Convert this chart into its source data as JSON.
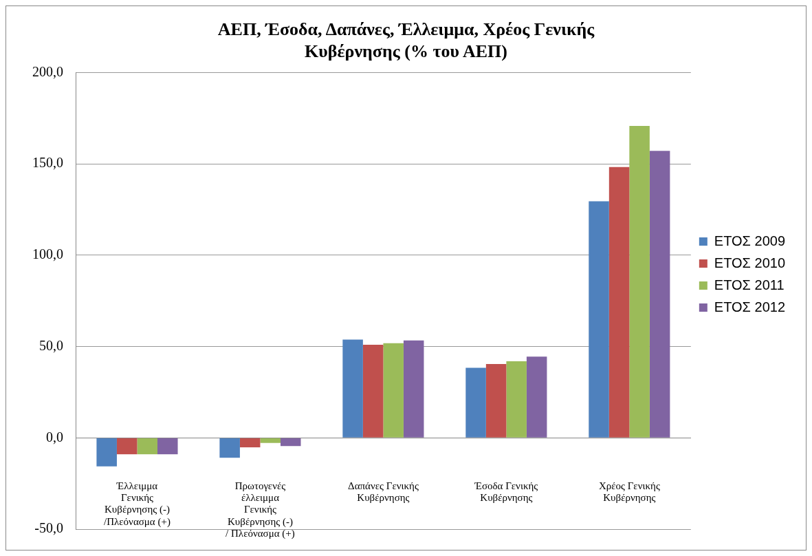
{
  "chart_data": {
    "type": "bar",
    "title": "ΑΕΠ, Έσοδα, Δαπάνες, Έλλειμμα, Χρέος Γενικής Κυβέρνησης (% του ΑΕΠ)",
    "categories": [
      "Έλλειμμα Γενικής Κυβέρνησης (-) /Πλεόνασμα (+)",
      "Πρωτογενές έλλειμμα Γενικής Κυβέρνησης (-) / Πλεόνασμα (+)",
      "Δαπάνες Γενικής Κυβέρνησης",
      "Έσοδα Γενικής Κυβέρνησης",
      "Χρέος Γενικής Κυβέρνησης"
    ],
    "series": [
      {
        "name": "ΕΤΟΣ 2009",
        "color": "#4f81bd",
        "values": [
          -15.6,
          -10.9,
          53.8,
          38.3,
          129.5
        ]
      },
      {
        "name": "ΕΤΟΣ 2010",
        "color": "#c0504d",
        "values": [
          -9,
          -5.2,
          51,
          40.4,
          148.3
        ]
      },
      {
        "name": "ΕΤΟΣ 2011",
        "color": "#9bbb59",
        "values": [
          -9,
          -2.8,
          51.8,
          41.9,
          170.8
        ]
      },
      {
        "name": "ΕΤΟΣ 2012",
        "color": "#8064a2",
        "values": [
          -9,
          -4.5,
          53.3,
          44.5,
          157.1
        ]
      }
    ],
    "ylim": [
      -50,
      200
    ],
    "yticks": [
      {
        "value": -50,
        "label": "-50,0"
      },
      {
        "value": 0,
        "label": "0,0"
      },
      {
        "value": 50,
        "label": "50,0"
      },
      {
        "value": 100,
        "label": "100,0"
      },
      {
        "value": 150,
        "label": "150,0"
      },
      {
        "value": 200,
        "label": "200,0"
      }
    ],
    "grid": "y",
    "legend": "right"
  }
}
